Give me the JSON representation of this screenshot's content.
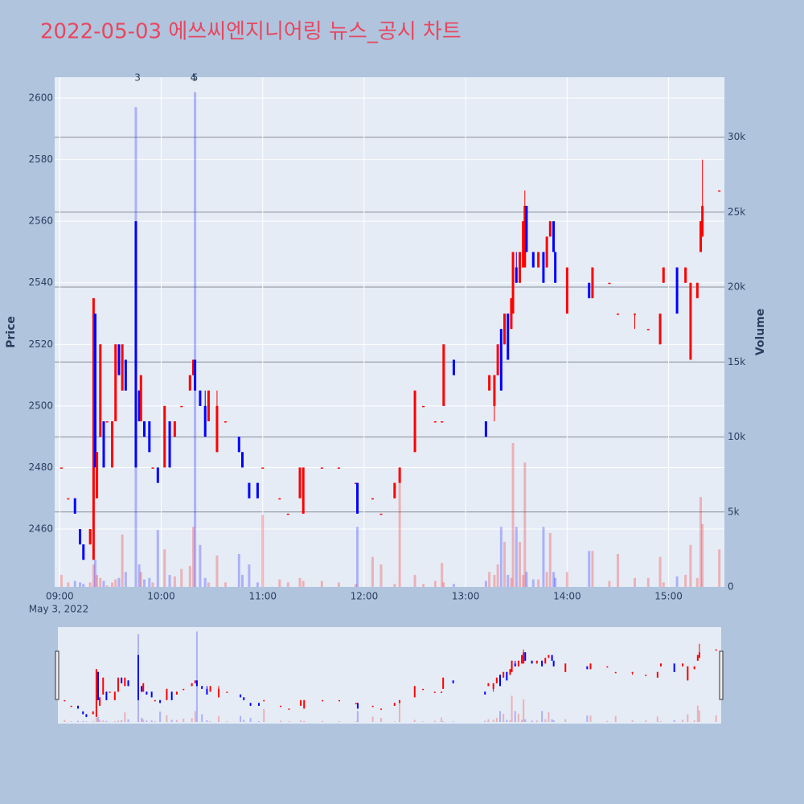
{
  "chart_data": {
    "type": "candlestick",
    "title": "2022-05-03 에쓰씨엔지니어링 뉴스_공시 차트",
    "ylabel": "Price",
    "y2label": "Volume",
    "x": [
      "09:01",
      "09:05",
      "09:09",
      "09:12",
      "09:14",
      "09:18",
      "09:20",
      "09:21",
      "09:22",
      "09:24",
      "09:26",
      "09:28",
      "09:31",
      "09:33",
      "09:35",
      "09:37",
      "09:39",
      "09:45",
      "09:47",
      "09:48",
      "09:50",
      "09:53",
      "09:55",
      "09:58",
      "10:02",
      "10:05",
      "10:08",
      "10:12",
      "10:17",
      "10:19",
      "10:20",
      "10:23",
      "10:26",
      "10:28",
      "10:33",
      "10:38",
      "10:46",
      "10:48",
      "10:52",
      "10:57",
      "11:00",
      "11:10",
      "11:15",
      "11:22",
      "11:24",
      "11:35",
      "11:45",
      "11:55",
      "11:56",
      "12:05",
      "12:10",
      "12:18",
      "12:21",
      "12:30",
      "12:35",
      "12:42",
      "12:46",
      "12:47",
      "12:53",
      "13:12",
      "13:14",
      "13:17",
      "13:19",
      "13:21",
      "13:23",
      "13:25",
      "13:27",
      "13:28",
      "13:30",
      "13:32",
      "13:34",
      "13:35",
      "13:36",
      "13:40",
      "13:43",
      "13:46",
      "13:48",
      "13:50",
      "13:52",
      "13:53",
      "14:00",
      "14:13",
      "14:15",
      "14:25",
      "14:30",
      "14:40",
      "14:48",
      "14:55",
      "14:57",
      "15:05",
      "15:10",
      "15:13",
      "15:17",
      "15:19",
      "15:20",
      "15:30"
    ],
    "open": [
      2480,
      2470,
      2470,
      2460,
      2455,
      2455,
      2450,
      2530,
      2470,
      2490,
      2495,
      2495,
      2480,
      2495,
      2520,
      2505,
      2515,
      2560,
      2505,
      2495,
      2495,
      2495,
      2480,
      2480,
      2480,
      2495,
      2490,
      2500,
      2505,
      2510,
      2515,
      2505,
      2500,
      2495,
      2485,
      2495,
      2490,
      2485,
      2475,
      2475,
      2480,
      2470,
      2465,
      2470,
      2465,
      2480,
      2480,
      2475,
      2475,
      2470,
      2465,
      2470,
      2475,
      2485,
      2500,
      2495,
      2495,
      2500,
      2515,
      2495,
      2505,
      2500,
      2510,
      2525,
      2520,
      2530,
      2525,
      2530,
      2545,
      2540,
      2545,
      2545,
      2565,
      2550,
      2545,
      2550,
      2545,
      2555,
      2560,
      2550,
      2530,
      2540,
      2535,
      2540,
      2530,
      2530,
      2525,
      2520,
      2540,
      2545,
      2540,
      2515,
      2535,
      2550,
      2555,
      2570
    ],
    "high": [
      2480,
      2470,
      2470,
      2460,
      2455,
      2460,
      2535,
      2530,
      2485,
      2520,
      2495,
      2495,
      2495,
      2520,
      2520,
      2520,
      2515,
      2560,
      2505,
      2510,
      2495,
      2495,
      2480,
      2480,
      2500,
      2495,
      2495,
      2500,
      2510,
      2515,
      2515,
      2505,
      2505,
      2505,
      2505,
      2495,
      2490,
      2485,
      2475,
      2475,
      2480,
      2470,
      2465,
      2480,
      2480,
      2480,
      2480,
      2475,
      2475,
      2470,
      2465,
      2475,
      2480,
      2505,
      2500,
      2495,
      2495,
      2520,
      2515,
      2495,
      2510,
      2510,
      2520,
      2525,
      2530,
      2530,
      2535,
      2550,
      2550,
      2550,
      2560,
      2570,
      2565,
      2550,
      2550,
      2550,
      2555,
      2560,
      2560,
      2550,
      2545,
      2540,
      2545,
      2540,
      2530,
      2530,
      2525,
      2530,
      2545,
      2545,
      2545,
      2540,
      2540,
      2560,
      2580,
      2570
    ],
    "low": [
      2480,
      2470,
      2465,
      2455,
      2450,
      2455,
      2450,
      2480,
      2470,
      2490,
      2480,
      2495,
      2480,
      2495,
      2510,
      2505,
      2505,
      2480,
      2495,
      2495,
      2490,
      2485,
      2480,
      2475,
      2480,
      2480,
      2490,
      2500,
      2505,
      2510,
      2505,
      2500,
      2490,
      2495,
      2485,
      2495,
      2485,
      2480,
      2470,
      2470,
      2480,
      2470,
      2465,
      2470,
      2465,
      2480,
      2480,
      2475,
      2465,
      2470,
      2465,
      2470,
      2475,
      2485,
      2500,
      2495,
      2495,
      2500,
      2510,
      2490,
      2505,
      2495,
      2510,
      2505,
      2520,
      2515,
      2525,
      2530,
      2540,
      2540,
      2545,
      2545,
      2550,
      2545,
      2545,
      2540,
      2545,
      2555,
      2550,
      2540,
      2530,
      2535,
      2535,
      2540,
      2530,
      2525,
      2525,
      2520,
      2540,
      2530,
      2540,
      2515,
      2535,
      2550,
      2555,
      2570
    ],
    "close": [
      2480,
      2470,
      2465,
      2455,
      2450,
      2460,
      2535,
      2480,
      2485,
      2520,
      2480,
      2495,
      2495,
      2520,
      2510,
      2520,
      2505,
      2480,
      2495,
      2510,
      2490,
      2485,
      2480,
      2475,
      2500,
      2480,
      2495,
      2500,
      2510,
      2515,
      2505,
      2500,
      2490,
      2505,
      2500,
      2495,
      2485,
      2480,
      2470,
      2470,
      2480,
      2470,
      2465,
      2480,
      2480,
      2480,
      2480,
      2475,
      2465,
      2470,
      2465,
      2475,
      2480,
      2505,
      2500,
      2495,
      2495,
      2520,
      2510,
      2490,
      2510,
      2510,
      2520,
      2505,
      2530,
      2515,
      2535,
      2550,
      2540,
      2550,
      2560,
      2565,
      2550,
      2545,
      2550,
      2540,
      2555,
      2560,
      2550,
      2540,
      2545,
      2535,
      2545,
      2540,
      2530,
      2530,
      2525,
      2530,
      2545,
      2530,
      2545,
      2540,
      2540,
      2560,
      2565,
      2570
    ],
    "volume": [
      800,
      300,
      400,
      300,
      200,
      300,
      1500,
      1800,
      800,
      600,
      400,
      100,
      300,
      500,
      600,
      3500,
      1000,
      32000,
      1500,
      1000,
      500,
      600,
      300,
      3800,
      2500,
      800,
      700,
      1200,
      1400,
      4000,
      33000,
      2800,
      600,
      300,
      2100,
      300,
      2200,
      800,
      1500,
      300,
      4800,
      500,
      300,
      600,
      400,
      400,
      300,
      200,
      4000,
      2000,
      1500,
      200,
      7000,
      800,
      200,
      400,
      1600,
      300,
      200,
      400,
      1000,
      800,
      1500,
      4000,
      3000,
      800,
      600,
      9600,
      4000,
      3000,
      800,
      8300,
      1000,
      500,
      500,
      4000,
      1000,
      3600,
      1000,
      600,
      1000,
      2400,
      2400,
      400,
      2200,
      600,
      600,
      2000,
      300,
      700,
      800,
      2800,
      600,
      6000,
      4200,
      2500
    ],
    "increasing_color": "#ff0000",
    "decreasing_color": "#0000ff",
    "ylim": [
      2441.2,
      2606.8
    ],
    "yticks": [
      2460,
      2480,
      2500,
      2520,
      2540,
      2560,
      2580,
      2600
    ],
    "y2lim": [
      0,
      34000
    ],
    "y2ticks": [
      0,
      {
        "value": 5000,
        "label": "5k"
      },
      {
        "value": 10000,
        "label": "10k"
      },
      {
        "value": 15000,
        "label": "15k"
      },
      {
        "value": 20000,
        "label": "20k"
      },
      {
        "value": 25000,
        "label": "25k"
      },
      {
        "value": 30000,
        "label": "30k"
      }
    ],
    "xlim": [
      "08:57",
      "15:33"
    ],
    "xticks": [
      "09:00",
      "10:00",
      "11:00",
      "12:00",
      "13:00",
      "14:00",
      "15:00"
    ],
    "x_date_label": "May 3, 2022",
    "annotations": [
      {
        "x": "09:46",
        "text": "3"
      },
      {
        "x": "10:19",
        "text": "4"
      },
      {
        "x": "10:20",
        "text": "5"
      }
    ],
    "grid": true,
    "rangeslider": true
  }
}
